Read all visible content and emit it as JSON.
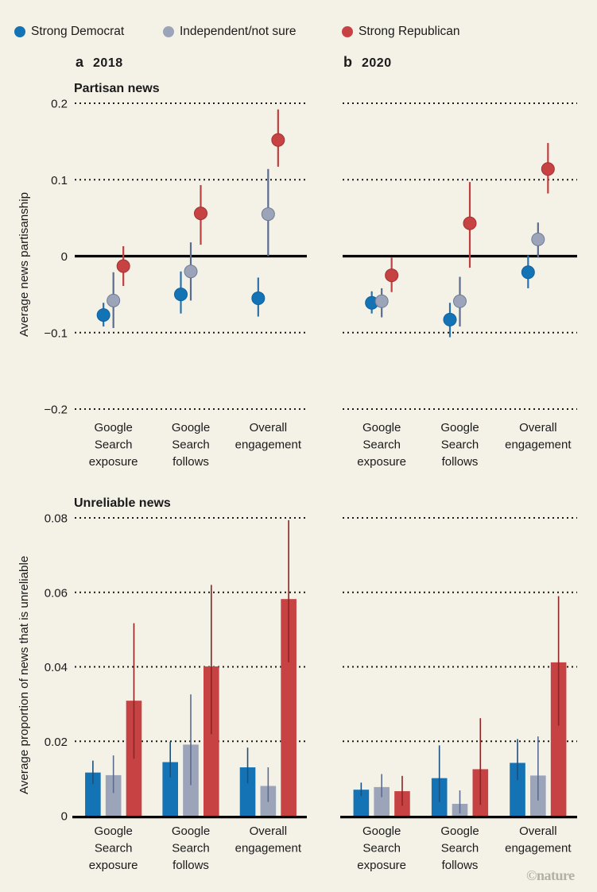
{
  "page": {
    "watermark": "©nature"
  },
  "colors": {
    "background": "#f4f1e7",
    "democrat": "#1373b4",
    "independent": "#9ba4b9",
    "republican": "#c74343",
    "grid": "#1a1a1a",
    "axis": "#000000",
    "watermark": "#b3b1a5"
  },
  "legend": {
    "items": [
      {
        "label": "Strong Democrat",
        "color": "#1373b4"
      },
      {
        "label": "Independent/not sure",
        "color": "#9ba4b9"
      },
      {
        "label": "Strong Republican",
        "color": "#c74343"
      }
    ]
  },
  "panels": {
    "a": {
      "letter": "a",
      "year": "2018"
    },
    "b": {
      "letter": "b",
      "year": "2020"
    }
  },
  "chart_data": [
    {
      "id": "partisan-2018",
      "panel": "a",
      "year": "2018",
      "type": "scatter-ci",
      "title": "Partisan news",
      "ylabel": "Average news partisanship",
      "ylim": [
        -0.2,
        0.2
      ],
      "yticks": [
        0.2,
        0.1,
        0,
        -0.1,
        -0.2
      ],
      "ytick_labels": [
        "0.2",
        "0.1",
        "0",
        "−0.1",
        "−0.2"
      ],
      "grid": "dotted",
      "categories": [
        "Google Search exposure",
        "Google Search follows",
        "Overall engagement"
      ],
      "series": [
        {
          "name": "Strong Democrat",
          "color": "#1373b4",
          "ci_color": "#2a72ab",
          "point_stroke": "#0e629f",
          "values": [
            -0.077,
            -0.05,
            -0.055
          ],
          "ci_low": [
            -0.092,
            -0.075,
            -0.079
          ],
          "ci_high": [
            -0.061,
            -0.02,
            -0.028
          ]
        },
        {
          "name": "Independent/not sure",
          "color": "#9ba4b9",
          "ci_color": "#5b6c8f",
          "point_stroke": "#6f7b96",
          "values": [
            -0.058,
            -0.02,
            0.055
          ],
          "ci_low": [
            -0.094,
            -0.058,
            0.0
          ],
          "ci_high": [
            -0.021,
            0.018,
            0.114
          ]
        },
        {
          "name": "Strong Republican",
          "color": "#c74343",
          "ci_color": "#bf4040",
          "point_stroke": "#a33030",
          "values": [
            -0.013,
            0.056,
            0.152
          ],
          "ci_low": [
            -0.039,
            0.015,
            0.117
          ],
          "ci_high": [
            0.013,
            0.093,
            0.192
          ]
        }
      ]
    },
    {
      "id": "partisan-2020",
      "panel": "b",
      "year": "2020",
      "type": "scatter-ci",
      "title": "",
      "ylabel": "",
      "ylim": [
        -0.2,
        0.2
      ],
      "yticks": [
        0.2,
        0.1,
        0,
        -0.1,
        -0.2
      ],
      "ytick_labels": [
        "0.2",
        "0.1",
        "0",
        "−0.1",
        "−0.2"
      ],
      "grid": "dotted",
      "categories": [
        "Google Search exposure",
        "Google Search follows",
        "Overall engagement"
      ],
      "series": [
        {
          "name": "Strong Democrat",
          "color": "#1373b4",
          "ci_color": "#2a72ab",
          "point_stroke": "#0e629f",
          "values": [
            -0.061,
            -0.083,
            -0.021
          ],
          "ci_low": [
            -0.075,
            -0.106,
            -0.042
          ],
          "ci_high": [
            -0.046,
            -0.061,
            0.001
          ]
        },
        {
          "name": "Independent/not sure",
          "color": "#9ba4b9",
          "ci_color": "#5b6c8f",
          "point_stroke": "#6f7b96",
          "values": [
            -0.059,
            -0.059,
            0.022
          ],
          "ci_low": [
            -0.08,
            -0.092,
            -0.002
          ],
          "ci_high": [
            -0.042,
            -0.027,
            0.044
          ]
        },
        {
          "name": "Strong Republican",
          "color": "#c74343",
          "ci_color": "#bf4040",
          "point_stroke": "#a33030",
          "values": [
            -0.025,
            0.043,
            0.114
          ],
          "ci_low": [
            -0.047,
            -0.015,
            0.082
          ],
          "ci_high": [
            -0.002,
            0.097,
            0.148
          ]
        }
      ]
    },
    {
      "id": "unreliable-2018",
      "panel": "a",
      "year": "2018",
      "type": "bar-ci",
      "title": "Unreliable news",
      "ylabel": "Average proportion of news that is unreliable",
      "ylim": [
        0,
        0.08
      ],
      "yticks": [
        0.08,
        0.06,
        0.04,
        0.02,
        0
      ],
      "ytick_labels": [
        "0.08",
        "0.06",
        "0.04",
        "0.02",
        "0"
      ],
      "grid": "dotted",
      "categories": [
        "Google Search exposure",
        "Google Search follows",
        "Overall engagement"
      ],
      "series": [
        {
          "name": "Strong Democrat",
          "color": "#1373b4",
          "ci_color": "#1d4f7c",
          "values": [
            0.0116,
            0.0144,
            0.013
          ],
          "ci_low": [
            0.0085,
            0.0103,
            0.0087
          ],
          "ci_high": [
            0.0148,
            0.0199,
            0.0183
          ]
        },
        {
          "name": "Independent/not sure",
          "color": "#9ba4b9",
          "ci_color": "#5b6c8f",
          "values": [
            0.0109,
            0.0191,
            0.008
          ],
          "ci_low": [
            0.0061,
            0.0082,
            0.0037
          ],
          "ci_high": [
            0.0162,
            0.0326,
            0.013
          ]
        },
        {
          "name": "Strong Republican",
          "color": "#c74343",
          "ci_color": "#8e2323",
          "values": [
            0.0309,
            0.0401,
            0.0582
          ],
          "ci_low": [
            0.0153,
            0.0219,
            0.0412
          ],
          "ci_high": [
            0.0517,
            0.062,
            0.0794
          ]
        }
      ]
    },
    {
      "id": "unreliable-2020",
      "panel": "b",
      "year": "2020",
      "type": "bar-ci",
      "title": "",
      "ylabel": "",
      "ylim": [
        0,
        0.08
      ],
      "yticks": [
        0.08,
        0.06,
        0.04,
        0.02,
        0
      ],
      "ytick_labels": [
        "0.08",
        "0.06",
        "0.04",
        "0.02",
        "0"
      ],
      "grid": "dotted",
      "categories": [
        "Google Search exposure",
        "Google Search follows",
        "Overall engagement"
      ],
      "series": [
        {
          "name": "Strong Democrat",
          "color": "#1373b4",
          "ci_color": "#1d4f7c",
          "values": [
            0.007,
            0.0101,
            0.0142
          ],
          "ci_low": [
            0.0053,
            0.0037,
            0.0096
          ],
          "ci_high": [
            0.0089,
            0.0189,
            0.0206
          ]
        },
        {
          "name": "Independent/not sure",
          "color": "#9ba4b9",
          "ci_color": "#5b6c8f",
          "values": [
            0.0077,
            0.0032,
            0.0108
          ],
          "ci_low": [
            0.005,
            0.0006,
            0.0041
          ],
          "ci_high": [
            0.0112,
            0.0068,
            0.0213
          ]
        },
        {
          "name": "Strong Republican",
          "color": "#c74343",
          "ci_color": "#8e2323",
          "values": [
            0.0066,
            0.0125,
            0.0412
          ],
          "ci_low": [
            0.0027,
            0.0029,
            0.0242
          ],
          "ci_high": [
            0.0107,
            0.0262,
            0.059
          ]
        }
      ]
    }
  ]
}
